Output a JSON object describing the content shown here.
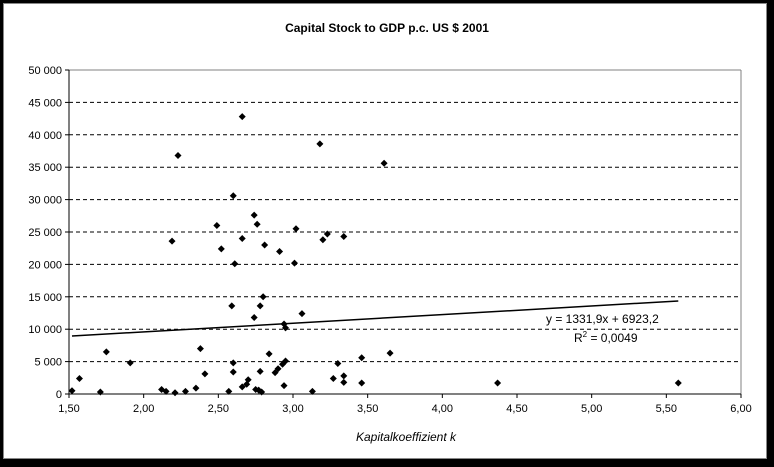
{
  "chart_data": {
    "type": "scatter",
    "title": "Capital Stock to GDP p.c. US $ 2001",
    "xlabel": "Kapitalkoeffizient k",
    "ylabel": "",
    "xlim": [
      1.5,
      6.0
    ],
    "ylim": [
      0,
      50000
    ],
    "x_ticks": [
      1.5,
      2.0,
      2.5,
      3.0,
      3.5,
      4.0,
      4.5,
      5.0,
      5.5,
      6.0
    ],
    "x_tick_labels": [
      "1,50",
      "2,00",
      "2,50",
      "3,00",
      "3,50",
      "4,00",
      "4,50",
      "5,00",
      "5,50",
      "6,00"
    ],
    "y_ticks": [
      0,
      5000,
      10000,
      15000,
      20000,
      25000,
      30000,
      35000,
      40000,
      45000,
      50000
    ],
    "y_tick_labels": [
      "0",
      "5 000",
      "10 000",
      "15 000",
      "20 000",
      "25 000",
      "30 000",
      "35 000",
      "40 000",
      "45 000",
      "50 000"
    ],
    "grid": "horizontal-dashed",
    "marker": "diamond",
    "points": [
      [
        1.52,
        500
      ],
      [
        1.57,
        2400
      ],
      [
        1.71,
        300
      ],
      [
        1.75,
        6500
      ],
      [
        1.91,
        4800
      ],
      [
        2.12,
        700
      ],
      [
        2.15,
        400
      ],
      [
        2.19,
        23600
      ],
      [
        2.21,
        200
      ],
      [
        2.23,
        36800
      ],
      [
        2.28,
        400
      ],
      [
        2.35,
        900
      ],
      [
        2.38,
        7000
      ],
      [
        2.41,
        3100
      ],
      [
        2.49,
        26000
      ],
      [
        2.52,
        22400
      ],
      [
        2.57,
        400
      ],
      [
        2.59,
        13600
      ],
      [
        2.6,
        30600
      ],
      [
        2.6,
        4800
      ],
      [
        2.6,
        3400
      ],
      [
        2.61,
        20100
      ],
      [
        2.66,
        24000
      ],
      [
        2.66,
        42800
      ],
      [
        2.66,
        1100
      ],
      [
        2.69,
        1500
      ],
      [
        2.7,
        2200
      ],
      [
        2.74,
        11800
      ],
      [
        2.74,
        27600
      ],
      [
        2.75,
        700
      ],
      [
        2.76,
        26200
      ],
      [
        2.77,
        600
      ],
      [
        2.78,
        13600
      ],
      [
        2.78,
        3500
      ],
      [
        2.79,
        300
      ],
      [
        2.8,
        15000
      ],
      [
        2.81,
        23000
      ],
      [
        2.84,
        6200
      ],
      [
        2.88,
        3300
      ],
      [
        2.9,
        3900
      ],
      [
        2.91,
        22000
      ],
      [
        2.93,
        4600
      ],
      [
        2.94,
        1300
      ],
      [
        2.94,
        10800
      ],
      [
        2.95,
        10200
      ],
      [
        2.95,
        5100
      ],
      [
        3.01,
        20200
      ],
      [
        3.02,
        25500
      ],
      [
        3.06,
        12400
      ],
      [
        3.13,
        400
      ],
      [
        3.18,
        38600
      ],
      [
        3.2,
        23800
      ],
      [
        3.23,
        24700
      ],
      [
        3.27,
        2400
      ],
      [
        3.3,
        4700
      ],
      [
        3.34,
        24300
      ],
      [
        3.34,
        2800
      ],
      [
        3.34,
        1800
      ],
      [
        3.46,
        5600
      ],
      [
        3.46,
        1700
      ],
      [
        3.61,
        35600
      ],
      [
        3.65,
        6300
      ],
      [
        4.37,
        1700
      ],
      [
        5.58,
        1700
      ]
    ],
    "trendline": {
      "type": "linear",
      "slope": 1331.9,
      "intercept": 6923.2,
      "x_range": [
        1.52,
        5.58
      ],
      "equation_label": "y = 1331,9x + 6923,2",
      "r2_label_prefix": "R",
      "r2_label_sup": "2",
      "r2_label_value": " = 0,0049"
    }
  }
}
